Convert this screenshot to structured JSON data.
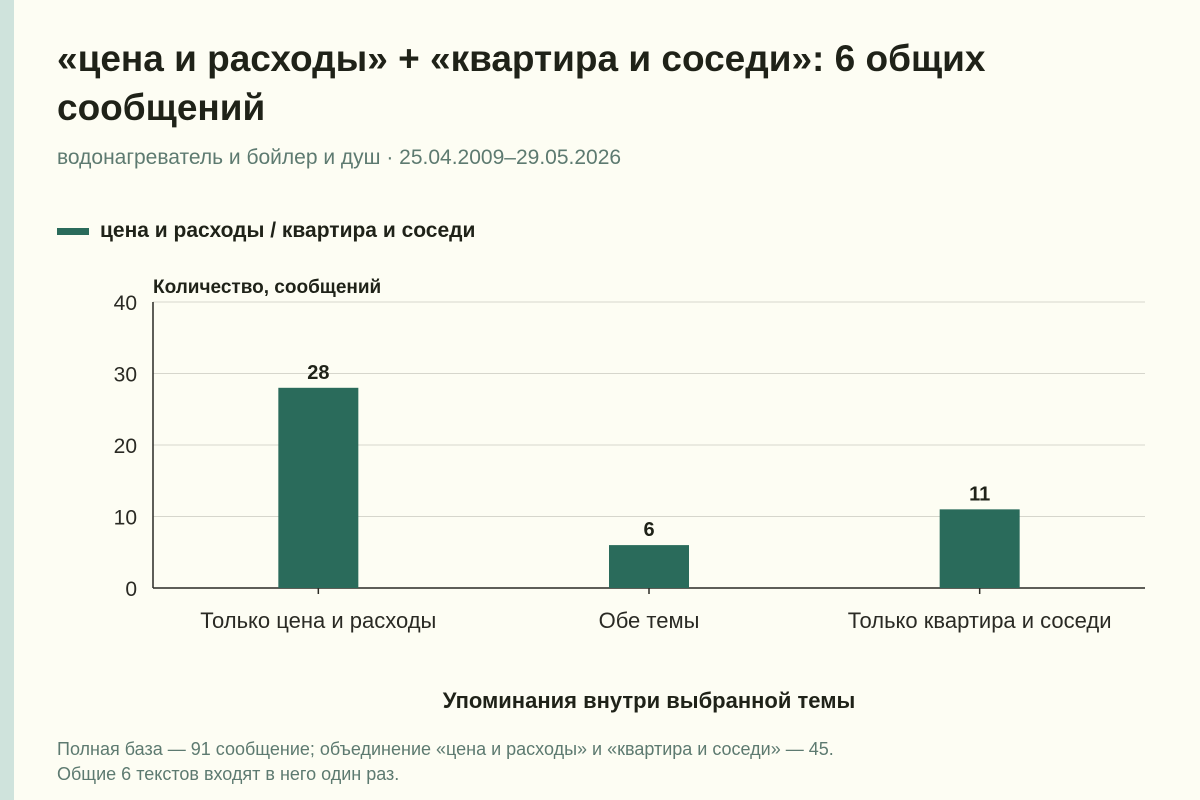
{
  "title": "«цена и расходы» + «квартира и соседи»: 6 общих сообщений",
  "subtitle": "водонагреватель и бойлер и душ · 25.04.2009–29.05.2026",
  "legend": {
    "label": "цена и расходы / квартира и соседи"
  },
  "footnote": {
    "line1": "Полная база — 91 сообщение; объединение «цена и расходы» и «квартира и соседи» — 45.",
    "line2": "Общие 6 текстов входят в него один раз."
  },
  "colors": {
    "bar": "#2a6b5b",
    "background": "#fdfdf3",
    "accent_strip": "#cfe3dc",
    "muted_text": "#5d7a70"
  },
  "chart_data": {
    "type": "bar",
    "categories": [
      "Только цена и расходы",
      "Обе темы",
      "Только квартира и соседи"
    ],
    "series": [
      {
        "name": "цена и расходы / квартира и соседи",
        "values": [
          28,
          6,
          11
        ]
      }
    ],
    "value_labels": [
      "28",
      "6",
      "11"
    ],
    "ylabel": "Количество, сообщений",
    "xlabel": "Упоминания внутри выбранной темы",
    "ylim": [
      0,
      40
    ],
    "yticks": [
      0,
      10,
      20,
      30,
      40
    ],
    "grid": true,
    "legend_position": "top-left"
  }
}
